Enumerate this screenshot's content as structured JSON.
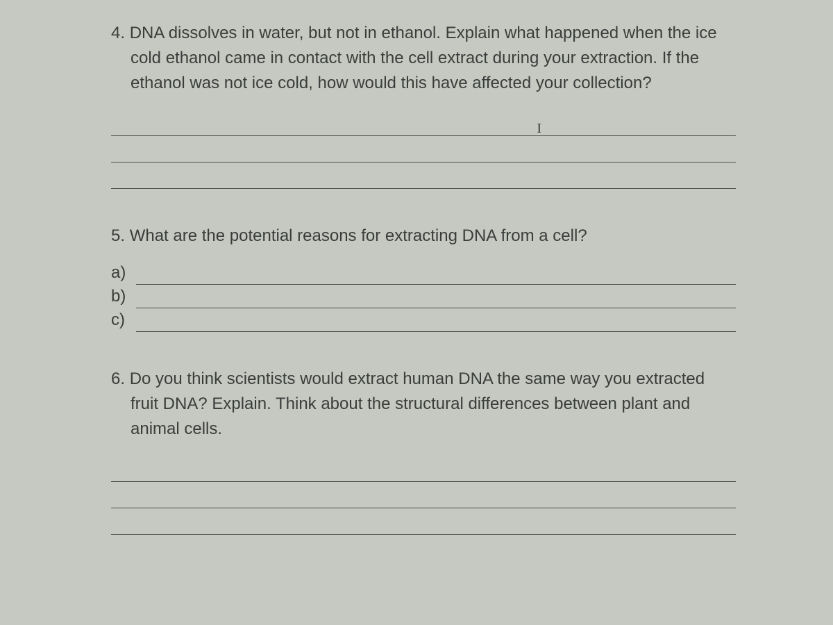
{
  "page": {
    "background_color": "#c5c9c2",
    "text_color": "#3a3d3a",
    "line_color": "#4a4d4a",
    "font_family": "Comic Sans MS",
    "body_fontsize": 24
  },
  "questions": [
    {
      "number": "4.",
      "text": "DNA dissolves in water, but not in ethanol.  Explain what happened when the ice cold ethanol came in contact with the cell extract during your extraction.  If the ethanol was not ice cold, how would this have affected your collection?",
      "answer_line_count": 3,
      "cursor_on_line": 2
    },
    {
      "number": "5.",
      "text": "What are the potential reasons for extracting DNA from a cell?",
      "sub_items": [
        "a)",
        "b)",
        "c)"
      ]
    },
    {
      "number": "6.",
      "text": "Do you think scientists would extract human DNA the same way you extracted fruit DNA? Explain. Think about the structural differences between plant and animal cells.",
      "answer_line_count": 3
    }
  ]
}
